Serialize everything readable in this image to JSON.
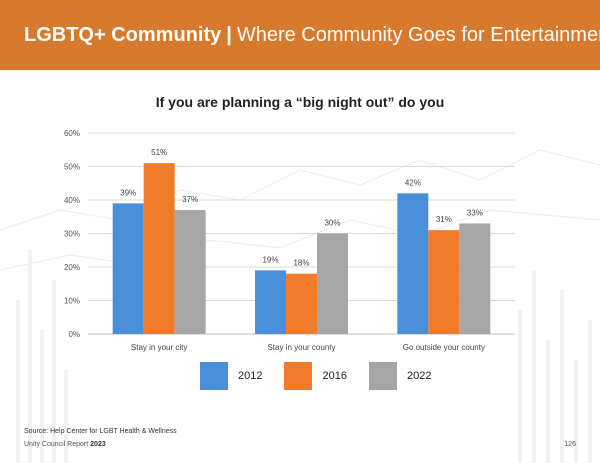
{
  "header": {
    "title_bold": "LGBTQ+ Community",
    "separator": "|",
    "title_rest": "Where Community Goes for Entertainment",
    "bg_color": "#D87A2E"
  },
  "chart_title": "If you are planning a “big night out” do you",
  "chart_data": {
    "type": "bar",
    "title": "If you are planning a “big night out” do you",
    "categories": [
      "Stay in your city",
      "Stay in your county",
      "Go outside your county"
    ],
    "series": [
      {
        "name": "2012",
        "color": "#4A8FD9",
        "values": [
          39,
          19,
          42
        ],
        "labels": [
          "39%",
          "19%",
          "42%"
        ]
      },
      {
        "name": "2016",
        "color": "#F07B2A",
        "values": [
          51,
          18,
          31
        ],
        "labels": [
          "51%",
          "18%",
          "31%"
        ]
      },
      {
        "name": "2022",
        "color": "#A6A6A6",
        "values": [
          37,
          30,
          33
        ],
        "labels": [
          "37%",
          "30%",
          "33%"
        ]
      }
    ],
    "y_ticks": [
      "0%",
      "10%",
      "20%",
      "30%",
      "40%",
      "50%",
      "60%"
    ],
    "ylim": [
      0,
      60
    ],
    "grid": true,
    "legend_position": "bottom"
  },
  "source": "Source: Help Center for LGBT Health & Wellness",
  "footer": {
    "report": "Unity Council Report",
    "year": "2023",
    "page": "126"
  }
}
